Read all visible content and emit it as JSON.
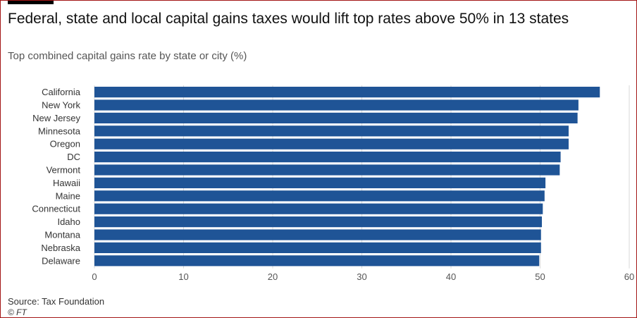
{
  "title": "Federal, state and local capital gains taxes would lift top rates above 50% in 13 states",
  "subtitle": "Top combined capital gains rate by state or city (%)",
  "source": "Source: Tax Foundation",
  "credit": "© FT",
  "colors": {
    "bar": "#1f5496",
    "text": "#333333",
    "grid": "#d9d9d9"
  },
  "chart_data": {
    "type": "bar",
    "orientation": "horizontal",
    "categories": [
      "California",
      "New York",
      "New Jersey",
      "Minnesota",
      "Oregon",
      "DC",
      "Vermont",
      "Hawaii",
      "Maine",
      "Connecticut",
      "Idaho",
      "Montana",
      "Nebraska",
      "Delaware"
    ],
    "values": [
      56.7,
      54.3,
      54.2,
      53.2,
      53.2,
      52.3,
      52.2,
      50.6,
      50.5,
      50.3,
      50.2,
      50.1,
      50.1,
      49.9
    ],
    "xticks": [
      "0",
      "10",
      "20",
      "30",
      "40",
      "50",
      "60"
    ],
    "xlim": [
      0,
      60
    ],
    "title": "Federal, state and local capital gains taxes would lift top rates above 50% in 13 states",
    "subtitle": "Top combined capital gains rate by state or city (%)",
    "xlabel": "",
    "ylabel": ""
  }
}
